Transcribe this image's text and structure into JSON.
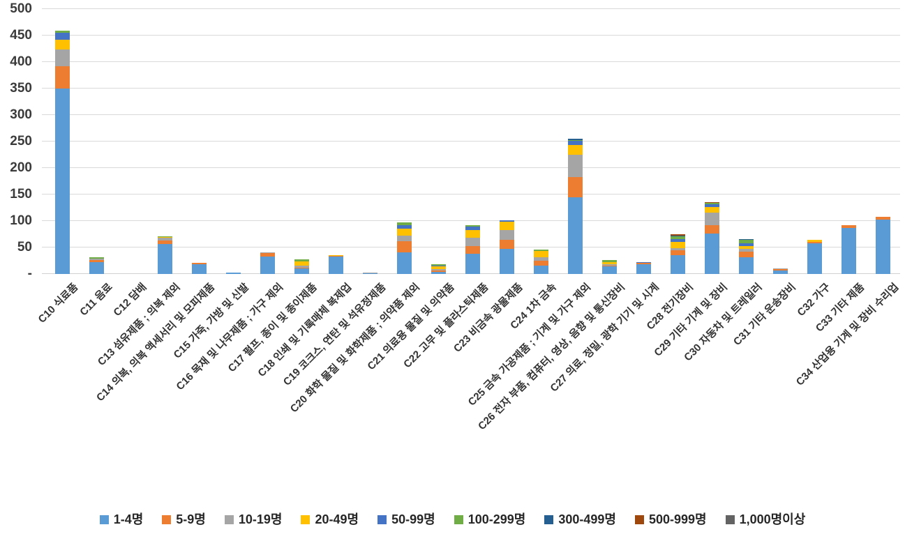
{
  "chart_data": {
    "type": "bar",
    "stacked": true,
    "orientation": "vertical",
    "title": "",
    "xlabel": "",
    "ylabel": "",
    "ylim": [
      0,
      500
    ],
    "ytick_values": [
      500,
      450,
      400,
      350,
      300,
      250,
      200,
      150,
      100,
      50,
      0
    ],
    "ytick_labels": [
      "500",
      "450",
      "400",
      "350",
      "300",
      "250",
      "200",
      "150",
      "100",
      "50",
      "-"
    ],
    "grid": true,
    "legend_position": "bottom",
    "categories": [
      "C10 식료품",
      "C11 음료",
      "C12 담배",
      "C13 섬유제품 ; 의복 제외",
      "C14 의복, 의복 액세서리 및 모피제품",
      "C15 가죽, 가방 및 신발",
      "C16 목재 및 나무제품 ; 가구 제외",
      "C17 펄프, 종이 및 종이제품",
      "C18 인쇄 및 기록매체 복제업",
      "C19 코크스, 연탄 및 석유정제품",
      "C20 화학 물질 및 화학제품 ; 의약품 제외",
      "C21 의료용 물질 및 의약품",
      "C22 고무 및 플라스틱제품",
      "C23 비금속 광물제품",
      "C24 1차 금속",
      "C25 금속 가공제품 ; 기계 및 가구 제외",
      "C26 전자 부품, 컴퓨터, 영상, 음향 및 통신장비",
      "C27 의료, 정밀, 광학 기기 및 시계",
      "C28 전기장비",
      "C29 기타 기계 및 장비",
      "C30 자동차 및 트레일러",
      "C31 기타 운송장비",
      "C32 가구",
      "C33 기타 제품",
      "C34 산업용 기계 및 장비 수리업"
    ],
    "series": [
      {
        "name": "1-4명",
        "color": "#5B9BD5",
        "values": [
          350,
          23,
          0,
          57,
          19,
          2,
          33,
          10,
          33,
          1,
          41,
          4,
          38,
          47,
          16,
          145,
          14,
          18,
          35,
          76,
          32,
          7,
          58,
          87,
          102
        ]
      },
      {
        "name": "5-9명",
        "color": "#ED7D31",
        "values": [
          42,
          3,
          0,
          6,
          2,
          0,
          7,
          2,
          1,
          0,
          21,
          2,
          15,
          17,
          9,
          38,
          2,
          3,
          10,
          16,
          10,
          2,
          2,
          5,
          6
        ]
      },
      {
        "name": "10-19명",
        "color": "#A5A5A5",
        "values": [
          32,
          3,
          0,
          5,
          0,
          0,
          1,
          4,
          0,
          2,
          10,
          3,
          15,
          19,
          6,
          42,
          3,
          0,
          4,
          24,
          5,
          1,
          1,
          0,
          0
        ]
      },
      {
        "name": "20-49명",
        "color": "#FFC000",
        "values": [
          18,
          0,
          0,
          2,
          0,
          0,
          0,
          8,
          2,
          0,
          14,
          5,
          15,
          16,
          13,
          19,
          4,
          0,
          11,
          10,
          6,
          0,
          3,
          0,
          0
        ]
      },
      {
        "name": "50-99명",
        "color": "#4472C4",
        "values": [
          13,
          0,
          0,
          0,
          0,
          0,
          0,
          0,
          0,
          0,
          6,
          2,
          7,
          3,
          0,
          8,
          0,
          2,
          6,
          5,
          5,
          0,
          0,
          0,
          0
        ]
      },
      {
        "name": "100-299명",
        "color": "#70AD47",
        "values": [
          4,
          2,
          0,
          1,
          0,
          0,
          0,
          4,
          0,
          0,
          5,
          3,
          2,
          0,
          2,
          1,
          4,
          0,
          5,
          3,
          6,
          0,
          1,
          0,
          0
        ]
      },
      {
        "name": "300-499명",
        "color": "#255E91",
        "values": [
          0,
          0,
          0,
          0,
          0,
          0,
          0,
          0,
          0,
          0,
          0,
          0,
          0,
          0,
          0,
          2,
          0,
          0,
          2,
          0,
          2,
          0,
          0,
          0,
          0
        ]
      },
      {
        "name": "500-999명",
        "color": "#9E480E",
        "values": [
          0,
          0,
          0,
          0,
          0,
          0,
          0,
          0,
          0,
          0,
          0,
          0,
          0,
          0,
          0,
          0,
          0,
          0,
          2,
          2,
          0,
          0,
          0,
          0,
          0
        ]
      },
      {
        "name": "1,000명이상",
        "color": "#636363",
        "values": [
          0,
          0,
          0,
          0,
          0,
          0,
          0,
          0,
          0,
          0,
          0,
          0,
          0,
          0,
          0,
          0,
          0,
          0,
          0,
          0,
          0,
          0,
          0,
          0,
          0
        ]
      }
    ]
  }
}
